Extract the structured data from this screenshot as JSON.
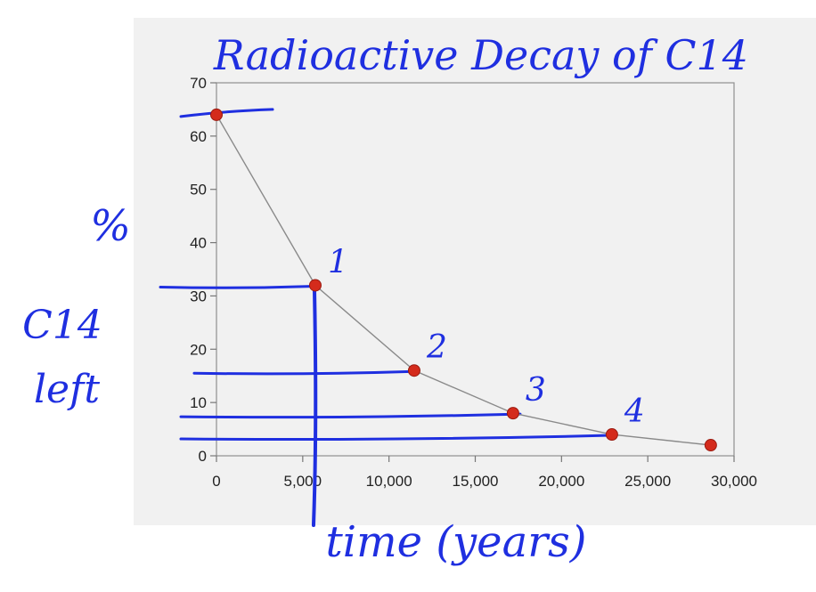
{
  "chart_data": {
    "type": "line",
    "title": "Radioactive Decay of C14",
    "xlabel": "time (years)",
    "ylabel_lines": [
      "%",
      "C14",
      "left"
    ],
    "x": [
      0,
      5730,
      11460,
      17190,
      22920,
      28650
    ],
    "y": [
      64,
      32,
      16,
      8,
      4,
      2
    ],
    "point_labels": [
      "",
      "1",
      "2",
      "3",
      "4",
      ""
    ],
    "xlim": [
      0,
      30000
    ],
    "ylim": [
      0,
      70
    ],
    "xticks": [
      0,
      5000,
      10000,
      15000,
      20000,
      25000,
      30000
    ],
    "xtick_labels": [
      "0",
      "5,000",
      "10,000",
      "15,000",
      "20,000",
      "25,000",
      "30,000"
    ],
    "yticks": [
      0,
      10,
      20,
      30,
      40,
      50,
      60,
      70
    ],
    "ytick_labels": [
      "0",
      "10",
      "20",
      "30",
      "40",
      "50",
      "60",
      "70"
    ],
    "grid": false,
    "colors": {
      "marker": "#d42b1c",
      "line": "#8a8a8a",
      "plot_background": "#f1f1f1",
      "ink": "#1f2fe0"
    }
  }
}
